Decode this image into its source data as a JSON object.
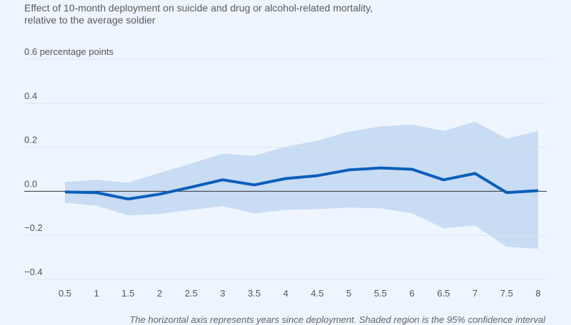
{
  "chart_data": {
    "type": "line",
    "title": "Effect of 10-month deployment on suicide and drug or alcohol-related mortality, relative to the average soldier",
    "ylabel_unit": "percentage points",
    "x": [
      0.5,
      1,
      1.5,
      2,
      2.5,
      3,
      3.5,
      4,
      4.5,
      5,
      5.5,
      6,
      6.5,
      7,
      7.5,
      8
    ],
    "x_tick_labels": [
      "0.5",
      "1",
      "1.5",
      "2",
      "2.5",
      "3",
      "3.5",
      "4",
      "4.5",
      "5",
      "5.5",
      "6",
      "6.5",
      "7",
      "7.5",
      "8"
    ],
    "y_ticks": [
      0.6,
      0.4,
      0.2,
      0.0,
      -0.2,
      -0.4
    ],
    "y_tick_labels": [
      "0.6 percentage points",
      "0.4",
      "0.2",
      "0.0",
      "−0.2",
      "−0.4"
    ],
    "ylim": [
      -0.4,
      0.6
    ],
    "xlim": [
      0.5,
      8
    ],
    "grid": true,
    "series": [
      {
        "values": [
          -0.003,
          -0.006,
          -0.035,
          -0.013,
          0.019,
          0.052,
          0.029,
          0.058,
          0.071,
          0.097,
          0.106,
          0.1,
          0.052,
          0.081,
          -0.006,
          0.003
        ]
      }
    ],
    "confidence_band": {
      "upper": [
        0.042,
        0.052,
        0.039,
        0.084,
        0.126,
        0.171,
        0.161,
        0.203,
        0.229,
        0.271,
        0.294,
        0.303,
        0.274,
        0.316,
        0.239,
        0.274
      ],
      "lower": [
        -0.052,
        -0.065,
        -0.11,
        -0.103,
        -0.084,
        -0.068,
        -0.1,
        -0.084,
        -0.081,
        -0.074,
        -0.077,
        -0.1,
        -0.168,
        -0.155,
        -0.252,
        -0.261
      ]
    },
    "colors": {
      "line": "#0a5fba",
      "band": "#c8dcf4",
      "background": "#eef5fe"
    },
    "note": "The horizontal axis represents years since deployment. Shaded region is the 95% confidence interval"
  }
}
